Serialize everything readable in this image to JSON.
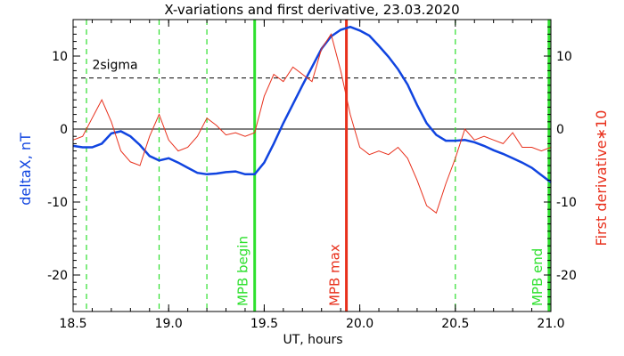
{
  "chart_data": {
    "type": "line",
    "title": "X-variations and first derivative, 23.03.2020",
    "xlabel": "UT, hours",
    "ylabel_left": "deltaX, nT",
    "ylabel_right": "First derivative∗10",
    "xlim": [
      18.5,
      21.0
    ],
    "ylim": [
      -25,
      15
    ],
    "x_ticks": [
      18.5,
      19.0,
      19.5,
      20.0,
      20.5,
      21.0
    ],
    "x_tick_labels": [
      "18.5",
      "19.0",
      "19.5",
      "20.0",
      "20.5",
      "21.0"
    ],
    "y_ticks": [
      -20,
      -10,
      0,
      10
    ],
    "y_tick_labels": [
      "-20",
      "-10",
      "0",
      "10"
    ],
    "colors": {
      "deltaX": "#1044e0",
      "derivative": "#e8301c",
      "green": "#2ee02e",
      "red_marker": "#e8301c",
      "axis": "#000000"
    },
    "sigma_level": 7,
    "sigma_label": "2sigma",
    "vertical_markers": [
      {
        "x": 18.57,
        "style": "dashed",
        "color": "green",
        "label": ""
      },
      {
        "x": 18.95,
        "style": "dashed",
        "color": "green",
        "label": ""
      },
      {
        "x": 19.2,
        "style": "dashed",
        "color": "green",
        "label": ""
      },
      {
        "x": 19.45,
        "style": "solid",
        "color": "green",
        "label": "MPB begin"
      },
      {
        "x": 19.93,
        "style": "solid",
        "color": "red",
        "label": "MPB max"
      },
      {
        "x": 20.5,
        "style": "dashed",
        "color": "green",
        "label": ""
      },
      {
        "x": 20.99,
        "style": "solid",
        "color": "green",
        "label": "MPB end"
      }
    ],
    "series": [
      {
        "key": "deltaX",
        "x": [
          18.5,
          18.55,
          18.6,
          18.65,
          18.7,
          18.75,
          18.8,
          18.85,
          18.9,
          18.95,
          19.0,
          19.05,
          19.1,
          19.15,
          19.2,
          19.25,
          19.3,
          19.35,
          19.4,
          19.45,
          19.5,
          19.55,
          19.6,
          19.65,
          19.7,
          19.75,
          19.8,
          19.85,
          19.9,
          19.95,
          20.0,
          20.05,
          20.1,
          20.15,
          20.2,
          20.25,
          20.3,
          20.35,
          20.4,
          20.45,
          20.5,
          20.55,
          20.6,
          20.65,
          20.7,
          20.75,
          20.8,
          20.85,
          20.9,
          20.95,
          21.0
        ],
        "values": [
          -2.3,
          -2.5,
          -2.5,
          -2.0,
          -0.6,
          -0.3,
          -1.0,
          -2.2,
          -3.7,
          -4.3,
          -4.0,
          -4.6,
          -5.3,
          -6.0,
          -6.2,
          -6.1,
          -5.9,
          -5.8,
          -6.2,
          -6.2,
          -4.6,
          -2.0,
          0.8,
          3.4,
          6.0,
          8.5,
          11.0,
          12.7,
          13.6,
          14.0,
          13.5,
          12.8,
          11.4,
          9.9,
          8.2,
          6.1,
          3.3,
          0.8,
          -0.8,
          -1.6,
          -1.6,
          -1.5,
          -1.8,
          -2.3,
          -2.9,
          -3.4,
          -4.0,
          -4.6,
          -5.3,
          -6.3,
          -7.3
        ]
      },
      {
        "key": "derivative",
        "x": [
          18.5,
          18.55,
          18.6,
          18.65,
          18.7,
          18.75,
          18.8,
          18.85,
          18.9,
          18.95,
          19.0,
          19.05,
          19.1,
          19.15,
          19.2,
          19.25,
          19.3,
          19.35,
          19.4,
          19.45,
          19.5,
          19.55,
          19.6,
          19.65,
          19.7,
          19.75,
          19.8,
          19.85,
          19.9,
          19.95,
          20.0,
          20.05,
          20.1,
          20.15,
          20.2,
          20.25,
          20.3,
          20.35,
          20.4,
          20.45,
          20.5,
          20.55,
          20.6,
          20.65,
          20.7,
          20.75,
          20.8,
          20.85,
          20.9,
          20.95,
          21.0
        ],
        "values": [
          -1.5,
          -1.0,
          1.5,
          4.0,
          1.0,
          -3.0,
          -4.5,
          -5.0,
          -1.0,
          2.0,
          -1.5,
          -3.0,
          -2.5,
          -1.0,
          1.5,
          0.5,
          -0.8,
          -0.5,
          -1.0,
          -0.5,
          4.5,
          7.5,
          6.5,
          8.5,
          7.5,
          6.5,
          11.0,
          13.0,
          8.0,
          2.0,
          -2.5,
          -3.5,
          -3.0,
          -3.5,
          -2.5,
          -4.0,
          -7.0,
          -10.5,
          -11.5,
          -7.5,
          -4.0,
          0.0,
          -1.5,
          -1.0,
          -1.5,
          -2.0,
          -0.5,
          -2.5,
          -2.5,
          -3.0,
          -2.5
        ]
      }
    ]
  }
}
